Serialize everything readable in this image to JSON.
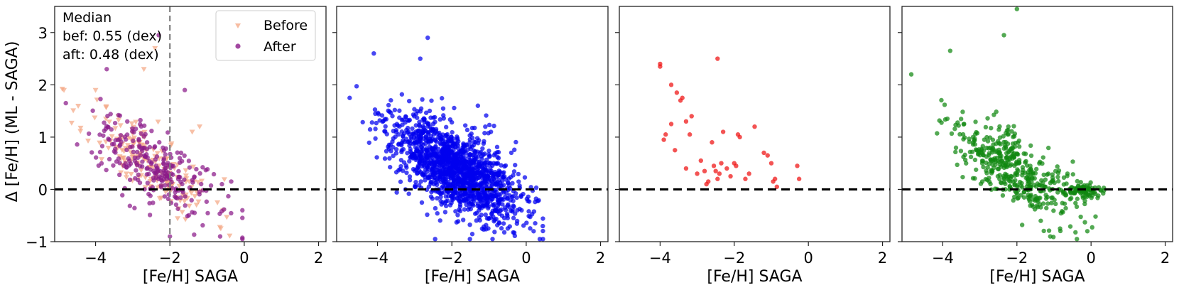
{
  "figure": {
    "ylabel": "Δ [Fe/H] (ML - SAGA)",
    "annotation_lines": [
      "Median",
      "bef: 0.55 (dex)",
      "aft: 0.48 (dex)"
    ],
    "legend": [
      {
        "label": "Before",
        "marker": "triangle-down",
        "color": "#f4a582"
      },
      {
        "label": "After",
        "marker": "circle",
        "color": "#8b1a89"
      }
    ]
  },
  "chart_data": [
    {
      "type": "scatter",
      "panel": 1,
      "xlabel": "[Fe/H] SAGA",
      "ylabel": "Δ [Fe/H] (ML - SAGA)",
      "xlim": [
        -5.1,
        2.2
      ],
      "ylim": [
        -1,
        3.5
      ],
      "xticks": [
        -4,
        -2,
        0,
        2
      ],
      "xtick_labels": [
        "−4",
        "−2",
        "0",
        "2"
      ],
      "yticks": [
        -1,
        0,
        1,
        2,
        3
      ],
      "ytick_labels": [
        "−1",
        "0",
        "1",
        "2",
        "3"
      ],
      "reference_hline": 0,
      "reference_vline": -2,
      "series": [
        {
          "name": "Before",
          "color": "#f4a582",
          "marker": "triangle-down",
          "seed": 11,
          "n": 190,
          "xc": -2.5,
          "xs": 0.85,
          "slope": -0.48,
          "intercept": -0.72,
          "noise": 0.33,
          "xmin": -4.9,
          "xmax": -0.1,
          "points": [
            [
              -4.85,
              1.9
            ],
            [
              -4.0,
              1.9
            ],
            [
              -2.7,
              2.3
            ],
            [
              -2.4,
              2.7
            ],
            [
              -1.4,
              1.1
            ],
            [
              -1.2,
              1.2
            ]
          ]
        },
        {
          "name": "After",
          "color": "#8b1a89",
          "marker": "circle",
          "seed": 7,
          "n": 260,
          "xc": -2.5,
          "xs": 0.8,
          "slope": -0.45,
          "intercept": -0.68,
          "noise": 0.36,
          "xmin": -4.9,
          "xmax": -0.05,
          "points": [
            [
              -4.8,
              1.65
            ],
            [
              -3.7,
              2.3
            ],
            [
              -2.3,
              2.95
            ],
            [
              -1.6,
              1.9
            ],
            [
              -2.0,
              -0.9
            ],
            [
              -0.05,
              -0.4
            ],
            [
              -0.6,
              0.1
            ],
            [
              -0.35,
              0.15
            ]
          ]
        }
      ],
      "annotation": [
        "Median",
        "bef: 0.55 (dex)",
        "aft: 0.48 (dex)"
      ]
    },
    {
      "type": "scatter",
      "panel": 2,
      "xlabel": "[Fe/H] SAGA",
      "xlim": [
        -5.1,
        2.2
      ],
      "ylim": [
        -1,
        3.5
      ],
      "xticks": [
        -4,
        -2,
        0,
        2
      ],
      "xtick_labels": [
        "−4",
        "−2",
        "0",
        "2"
      ],
      "reference_hline": 0,
      "series": [
        {
          "name": "blue",
          "color": "#0000ee",
          "marker": "circle",
          "seed": 23,
          "n": 1500,
          "xc": -1.9,
          "xs": 0.85,
          "slope": -0.38,
          "intercept": -0.35,
          "noise": 0.38,
          "xmin": -4.8,
          "xmax": 0.45,
          "points": [
            [
              -4.75,
              1.75
            ],
            [
              -4.1,
              2.6
            ],
            [
              -2.65,
              2.9
            ],
            [
              -2.85,
              2.5
            ],
            [
              -1.3,
              1.6
            ],
            [
              -1.1,
              1.2
            ],
            [
              -0.95,
              1.1
            ],
            [
              0.2,
              -0.8
            ],
            [
              -2.45,
              -0.95
            ]
          ]
        }
      ]
    },
    {
      "type": "scatter",
      "panel": 3,
      "xlabel": "[Fe/H] SAGA",
      "xlim": [
        -5.1,
        2.2
      ],
      "ylim": [
        -1,
        3.5
      ],
      "xticks": [
        -4,
        -2,
        0,
        2
      ],
      "xtick_labels": [
        "−4",
        "−2",
        "0",
        "2"
      ],
      "reference_hline": 0,
      "series": [
        {
          "name": "red",
          "color": "#ee1111",
          "marker": "circle",
          "points": [
            [
              -4.0,
              2.4
            ],
            [
              -4.0,
              2.35
            ],
            [
              -2.45,
              2.5
            ],
            [
              -3.7,
              2.0
            ],
            [
              -3.55,
              1.85
            ],
            [
              -3.4,
              1.75
            ],
            [
              -3.3,
              1.3
            ],
            [
              -3.45,
              1.7
            ],
            [
              -3.2,
              1.05
            ],
            [
              -3.15,
              1.4
            ],
            [
              -3.7,
              1.25
            ],
            [
              -3.85,
              1.05
            ],
            [
              -3.9,
              0.95
            ],
            [
              -3.6,
              0.75
            ],
            [
              -3.3,
              0.4
            ],
            [
              -3.0,
              0.3
            ],
            [
              -2.9,
              0.55
            ],
            [
              -2.8,
              0.35
            ],
            [
              -2.7,
              0.15
            ],
            [
              -2.6,
              0.9
            ],
            [
              -2.55,
              0.45
            ],
            [
              -2.5,
              0.35
            ],
            [
              -2.4,
              0.3
            ],
            [
              -2.35,
              0.5
            ],
            [
              -2.3,
              1.1
            ],
            [
              -2.2,
              0.4
            ],
            [
              -2.1,
              0.25
            ],
            [
              -2.0,
              0.5
            ],
            [
              -1.95,
              0.45
            ],
            [
              -1.9,
              1.05
            ],
            [
              -1.85,
              1.0
            ],
            [
              -1.7,
              0.2
            ],
            [
              -1.6,
              0.3
            ],
            [
              -1.45,
              1.2
            ],
            [
              -1.2,
              0.7
            ],
            [
              -1.1,
              0.65
            ],
            [
              -1.0,
              0.5
            ],
            [
              -0.95,
              0.15
            ],
            [
              -0.9,
              0.2
            ],
            [
              -0.85,
              0.05
            ],
            [
              -0.3,
              0.45
            ],
            [
              -0.25,
              0.2
            ],
            [
              -2.75,
              0.1
            ],
            [
              -2.45,
              0.2
            ]
          ]
        }
      ]
    },
    {
      "type": "scatter",
      "panel": 4,
      "xlabel": "[Fe/H] SAGA",
      "xlim": [
        -5.1,
        2.2
      ],
      "ylim": [
        -1,
        3.5
      ],
      "xticks": [
        -4,
        -2,
        0,
        2
      ],
      "xtick_labels": [
        "−4",
        "−2",
        "0",
        "2"
      ],
      "reference_hline": 0,
      "series": [
        {
          "name": "green",
          "color": "#118811",
          "marker": "circle",
          "seed": 41,
          "n": 430,
          "xc": -2.1,
          "xs": 0.85,
          "slope": -0.4,
          "intercept": -0.45,
          "noise": 0.34,
          "xmin": -4.8,
          "xmax": 0.35,
          "points": [
            [
              -4.85,
              2.2
            ],
            [
              -3.8,
              2.65
            ],
            [
              -2.35,
              2.95
            ],
            [
              -2.0,
              3.45
            ],
            [
              -0.1,
              -0.8
            ],
            [
              -1.1,
              -0.9
            ]
          ]
        },
        {
          "name": "green-cluster",
          "color": "#118811",
          "marker": "circle",
          "seed": 53,
          "n": 90,
          "xc": -0.2,
          "xs": 0.28,
          "slope": 0.0,
          "intercept": -0.02,
          "noise": 0.07,
          "xmin": -0.9,
          "xmax": 0.35,
          "points": []
        }
      ]
    }
  ]
}
